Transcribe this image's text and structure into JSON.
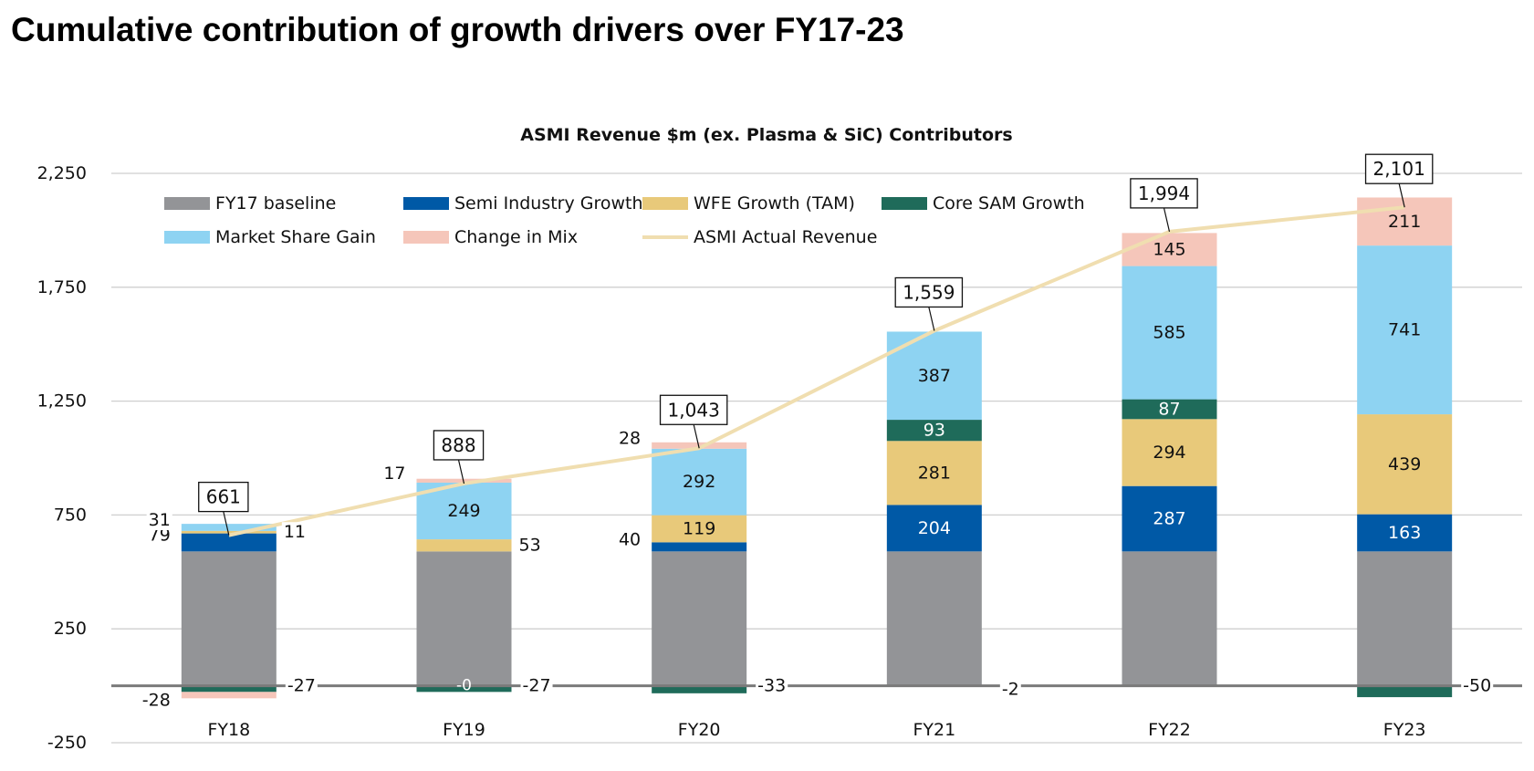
{
  "page_title": "Cumulative contribution of growth drivers over FY17-23",
  "chart_data": {
    "type": "bar",
    "stacked": true,
    "title": "ASMI Revenue $m (ex. Plasma & SiC) Contributors",
    "xlabel": "",
    "ylabel": "",
    "ylim": [
      -250,
      2250
    ],
    "yticks": [
      -250,
      250,
      750,
      1250,
      1750,
      2250
    ],
    "ytick_labels": [
      "-250",
      "250",
      "750",
      "1,250",
      "1,750",
      "2,250"
    ],
    "grid": true,
    "legend_position": "top-left",
    "categories": [
      "FY18",
      "FY19",
      "FY20",
      "FY21",
      "FY22",
      "FY23"
    ],
    "baseline_value": 590,
    "series": [
      {
        "name": "FY17 baseline",
        "color": "#939497",
        "values": [
          590,
          590,
          590,
          590,
          590,
          590
        ],
        "labels": [
          "",
          "",
          "",
          "",
          "",
          ""
        ]
      },
      {
        "name": "Semi Industry Growth",
        "color": "#0059A6",
        "values": [
          79,
          0,
          40,
          204,
          287,
          163
        ],
        "labels": [
          "79",
          "",
          "40",
          "204",
          "287",
          "163"
        ]
      },
      {
        "name": "WFE Growth (TAM)",
        "color": "#E8C97A",
        "values": [
          11,
          53,
          119,
          281,
          294,
          439
        ],
        "labels": [
          "11",
          "53",
          "119",
          "281",
          "294",
          "439"
        ]
      },
      {
        "name": "Core SAM Growth",
        "color": "#1F6B5A",
        "values": [
          -27,
          -27,
          -33,
          93,
          87,
          -50
        ],
        "labels": [
          "-27",
          "-27",
          "-33",
          "93",
          "87",
          "-50"
        ]
      },
      {
        "name": "Market Share Gain",
        "color": "#8ED3F2",
        "values": [
          31,
          249,
          292,
          387,
          585,
          741
        ],
        "labels": [
          "31",
          "249",
          "292",
          "387",
          "585",
          "741"
        ]
      },
      {
        "name": "Change in Mix",
        "color": "#F5C6BA",
        "values": [
          -28,
          17,
          28,
          -2,
          145,
          211
        ],
        "labels": [
          "-28",
          "17",
          "28",
          "-2",
          "145",
          "211"
        ]
      }
    ],
    "second_labels": [
      "",
      "-0",
      "",
      "",
      "",
      ""
    ],
    "line": {
      "name": "ASMI Actual Revenue",
      "color": "#F0DEB0",
      "values": [
        661,
        888,
        1043,
        1559,
        1994,
        2101
      ],
      "labels": [
        "661",
        "888",
        "1,043",
        "1,559",
        "1,994",
        "2,101"
      ]
    }
  }
}
